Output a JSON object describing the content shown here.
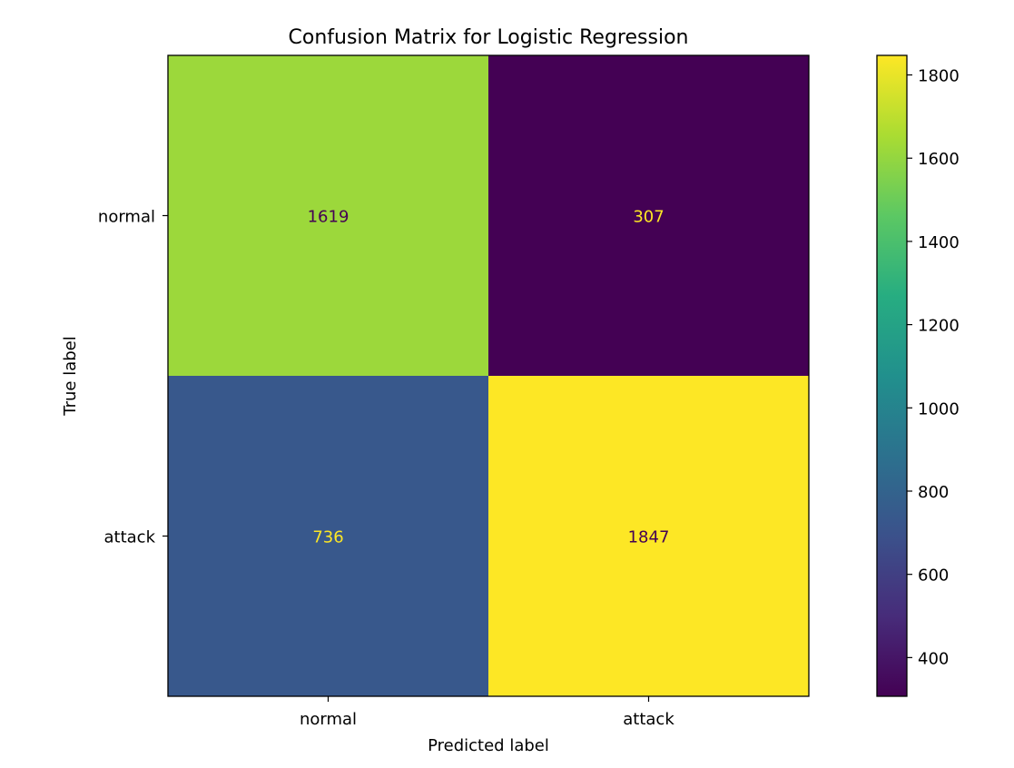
{
  "chart_data": {
    "type": "heatmap",
    "title": "Confusion Matrix for Logistic Regression",
    "xlabel": "Predicted label",
    "ylabel": "True label",
    "x_categories": [
      "normal",
      "attack"
    ],
    "y_categories": [
      "normal",
      "attack"
    ],
    "values": [
      [
        1619,
        307
      ],
      [
        736,
        1847
      ]
    ],
    "colormap": "viridis",
    "colorbar": {
      "vmin": 307,
      "vmax": 1847,
      "ticks": [
        400,
        600,
        800,
        1000,
        1200,
        1400,
        1600,
        1800
      ],
      "tick_labels": [
        "400",
        "600",
        "800",
        "1000",
        "1200",
        "1400",
        "1600",
        "1800"
      ]
    },
    "grid": false
  }
}
